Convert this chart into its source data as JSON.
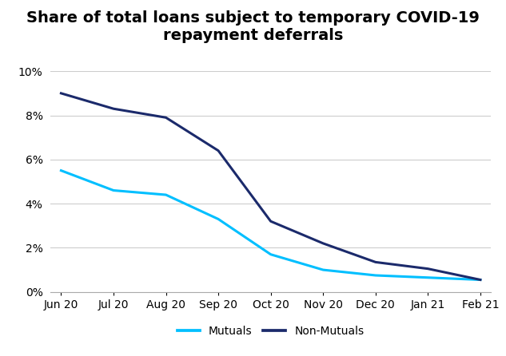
{
  "title": "Share of total loans subject to temporary COVID-19\nrepayment deferrals",
  "x_labels": [
    "Jun 20",
    "Jul 20",
    "Aug 20",
    "Sep 20",
    "Oct 20",
    "Nov 20",
    "Dec 20",
    "Jan 21",
    "Feb 21"
  ],
  "mutuals": [
    5.5,
    4.6,
    4.4,
    3.3,
    1.7,
    1.0,
    0.75,
    0.65,
    0.55
  ],
  "non_mutuals": [
    9.0,
    8.3,
    7.9,
    6.4,
    3.2,
    2.2,
    1.35,
    1.05,
    0.55
  ],
  "mutuals_color": "#00BFFF",
  "non_mutuals_color": "#1B2A6B",
  "ylim": [
    0,
    10
  ],
  "yticks": [
    0,
    2,
    4,
    6,
    8,
    10
  ],
  "ytick_labels": [
    "0%",
    "2%",
    "4%",
    "6%",
    "8%",
    "10%"
  ],
  "legend_mutuals": "Mutuals",
  "legend_non_mutuals": "Non-Mutuals",
  "title_fontsize": 14,
  "tick_fontsize": 10,
  "legend_fontsize": 10,
  "line_width": 2.2,
  "background_color": "#ffffff",
  "grid_color": "#cccccc"
}
